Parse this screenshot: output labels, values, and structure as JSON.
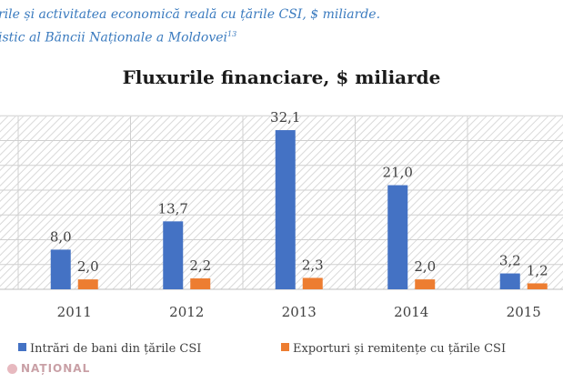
{
  "caption": {
    "line1": "rile și activitatea economică reală cu țările CSI, $ miliarde.",
    "line2": "istic al Băncii Naționale a Moldovei",
    "footnote": "13"
  },
  "watermark": "NAȚIONAL",
  "colors": {
    "series1": "#4472c4",
    "series2": "#ed7d31",
    "caption": "#3b7bbf"
  },
  "chart_data": {
    "type": "bar",
    "title": "Fluxurile financiare, $ miliarde",
    "categories": [
      "2011",
      "2012",
      "2013",
      "2014",
      "2015"
    ],
    "series": [
      {
        "name": "Intrări de bani din țările CSI",
        "values": [
          8.0,
          13.7,
          32.1,
          21.0,
          3.2
        ],
        "labels": [
          "8,0",
          "13,7",
          "32,1",
          "21,0",
          "3,2"
        ]
      },
      {
        "name": "Exporturi și remitențe cu țările CSI",
        "values": [
          2.0,
          2.2,
          2.3,
          2.0,
          1.2
        ],
        "labels": [
          "2,0",
          "2,2",
          "2,3",
          "2,0",
          "1,2"
        ]
      }
    ],
    "ylim": [
      0,
      35
    ],
    "grid": true,
    "legend": "bottom"
  }
}
